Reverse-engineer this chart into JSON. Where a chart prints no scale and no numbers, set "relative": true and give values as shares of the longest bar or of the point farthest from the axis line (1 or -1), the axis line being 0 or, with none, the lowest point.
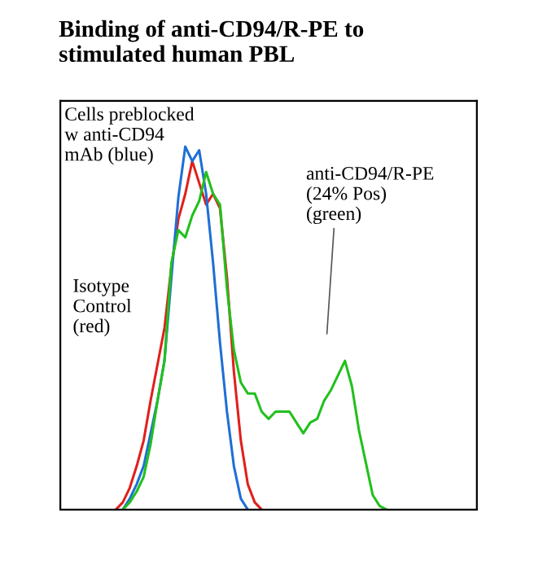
{
  "chart_data": {
    "type": "line",
    "title": "Binding of anti-CD94/R-PE to\nstimulated human PBL",
    "relative": true,
    "grid": false,
    "legend": false,
    "marker": "none",
    "line_style": "solid",
    "categories": [
      null,
      null,
      null,
      null,
      null,
      null,
      null,
      null,
      null,
      null,
      null,
      null,
      null,
      null,
      null,
      null,
      null,
      null,
      null,
      null,
      null,
      null,
      null,
      null,
      null,
      null,
      null,
      null,
      null,
      null,
      null,
      null,
      null,
      null,
      null,
      null,
      null,
      null,
      null,
      null,
      null,
      null,
      null,
      null,
      null,
      null,
      null,
      null,
      null,
      null,
      null,
      null,
      null,
      null,
      null,
      null,
      null,
      null,
      null,
      null,
      null
    ],
    "series": [
      {
        "color": "#e0201c",
        "values": [
          null,
          null,
          null,
          null,
          null,
          null,
          null,
          null,
          0,
          0.02,
          0.06,
          0.12,
          0.19,
          0.3,
          0.4,
          0.5,
          0.67,
          0.8,
          0.87,
          0.96,
          0.9,
          0.84,
          0.87,
          0.83,
          0.64,
          0.38,
          0.19,
          0.07,
          0.02,
          0,
          null,
          null,
          null,
          null,
          null,
          null,
          null,
          null,
          null,
          null,
          null,
          null,
          null,
          null,
          null,
          null,
          null,
          null,
          null,
          null,
          null,
          null,
          null,
          null,
          null,
          null,
          null,
          null,
          null,
          null,
          null
        ]
      },
      {
        "color": "#1f6fd6",
        "values": [
          null,
          null,
          null,
          null,
          null,
          null,
          null,
          null,
          null,
          0,
          0.03,
          0.07,
          0.12,
          0.21,
          0.3,
          0.41,
          0.64,
          0.86,
          1,
          0.96,
          0.99,
          0.87,
          0.68,
          0.46,
          0.27,
          0.12,
          0.03,
          0,
          null,
          null,
          null,
          null,
          null,
          null,
          null,
          null,
          null,
          null,
          null,
          null,
          null,
          null,
          null,
          null,
          null,
          null,
          null,
          null,
          null,
          null,
          null,
          null,
          null,
          null,
          null,
          null,
          null,
          null,
          null,
          null,
          null
        ]
      },
      {
        "color": "#22c01c",
        "values": [
          null,
          null,
          null,
          null,
          null,
          null,
          null,
          null,
          null,
          0,
          0.02,
          0.05,
          0.09,
          0.18,
          0.3,
          0.41,
          0.68,
          0.77,
          0.75,
          0.81,
          0.85,
          0.93,
          0.87,
          0.84,
          0.61,
          0.44,
          0.35,
          0.32,
          0.32,
          0.27,
          0.25,
          0.27,
          0.27,
          0.27,
          0.24,
          0.21,
          0.24,
          0.25,
          0.3,
          0.33,
          0.37,
          0.41,
          0.34,
          0.22,
          0.13,
          0.04,
          0.01,
          0,
          null,
          null,
          null,
          null,
          null,
          null,
          null,
          null,
          null,
          null,
          null,
          null,
          null
        ]
      }
    ],
    "annotations": [
      "Cells preblocked\nw anti-CD94\nmAb (blue)",
      "Isotype\nControl\n(red)",
      "anti-CD94/R-PE\n(24% Pos)\n(green)"
    ]
  }
}
